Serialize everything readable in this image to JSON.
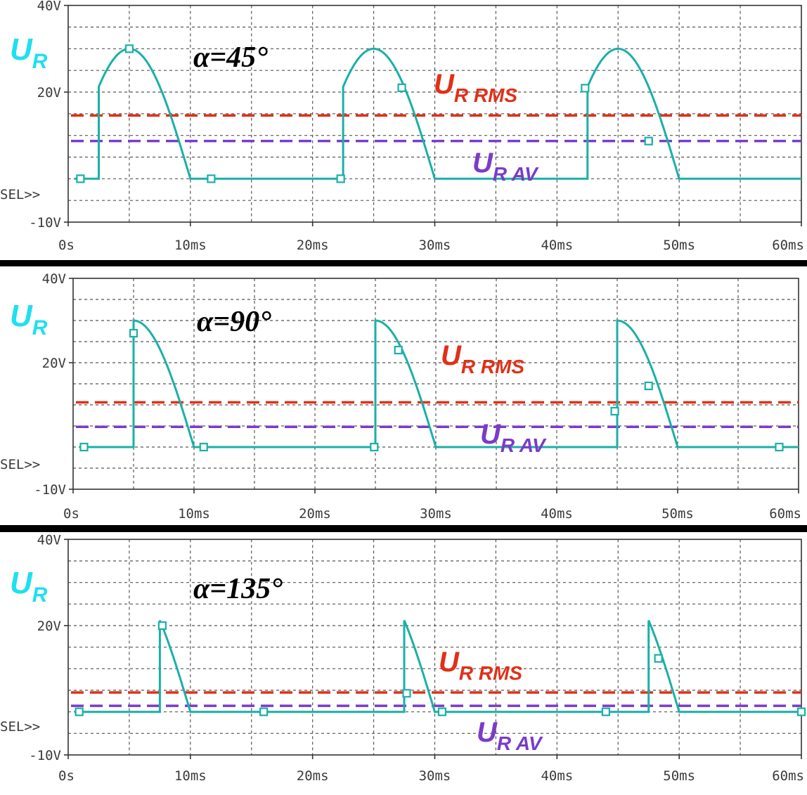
{
  "chart_data": [
    {
      "type": "line",
      "annotation_angle": "α=45°",
      "alpha_deg": 45,
      "series_label": {
        "main": "U",
        "sub": "R"
      },
      "rms_label": {
        "main": "U",
        "sub": "R RMS"
      },
      "av_label": {
        "main": "U",
        "sub": "R AV"
      },
      "sel_label": "SEL>>",
      "x_ticks": [
        "0s",
        "10ms",
        "20ms",
        "30ms",
        "40ms",
        "50ms",
        "60ms"
      ],
      "y_ticks": [
        "40V",
        "20V",
        "-10V"
      ],
      "xlim_ms": [
        0,
        60
      ],
      "ylim_v": [
        -10,
        40
      ],
      "period_ms": 20,
      "peak_v": 30,
      "rms_v": 14.6,
      "av_v": 8.7,
      "grid": true,
      "colors": {
        "trace": "#1ab0a8",
        "rms": "#e03018",
        "av": "#7a3cc8",
        "ylabel": "#1ee0f0",
        "grid": "#555555"
      }
    },
    {
      "type": "line",
      "annotation_angle": "α=90°",
      "alpha_deg": 90,
      "series_label": {
        "main": "U",
        "sub": "R"
      },
      "rms_label": {
        "main": "U",
        "sub": "R RMS"
      },
      "av_label": {
        "main": "U",
        "sub": "R AV"
      },
      "sel_label": "SEL>>",
      "x_ticks": [
        "0s",
        "10ms",
        "20ms",
        "30ms",
        "40ms",
        "50ms",
        "60ms"
      ],
      "y_ticks": [
        "40V",
        "20V",
        "-10V"
      ],
      "xlim_ms": [
        0,
        60
      ],
      "ylim_v": [
        -10,
        40
      ],
      "period_ms": 20,
      "peak_v": 30,
      "rms_v": 10.6,
      "av_v": 4.8,
      "grid": true,
      "colors": {
        "trace": "#1ab0a8",
        "rms": "#e03018",
        "av": "#7a3cc8",
        "ylabel": "#1ee0f0",
        "grid": "#555555"
      }
    },
    {
      "type": "line",
      "annotation_angle": "α=135°",
      "alpha_deg": 135,
      "series_label": {
        "main": "U",
        "sub": "R"
      },
      "rms_label": {
        "main": "U",
        "sub": "R RMS"
      },
      "av_label": {
        "main": "U",
        "sub": "R AV"
      },
      "sel_label": "SEL>>",
      "x_ticks": [
        "0s",
        "10ms",
        "20ms",
        "30ms",
        "40ms",
        "50ms",
        "60ms"
      ],
      "y_ticks": [
        "40V",
        "20V",
        "-10V"
      ],
      "xlim_ms": [
        0,
        60
      ],
      "ylim_v": [
        -10,
        40
      ],
      "period_ms": 20,
      "peak_v": 21.2,
      "rms_v": 4.5,
      "av_v": 1.4,
      "grid": true,
      "colors": {
        "trace": "#1ab0a8",
        "rms": "#e03018",
        "av": "#7a3cc8",
        "ylabel": "#1ee0f0",
        "grid": "#555555"
      }
    }
  ]
}
